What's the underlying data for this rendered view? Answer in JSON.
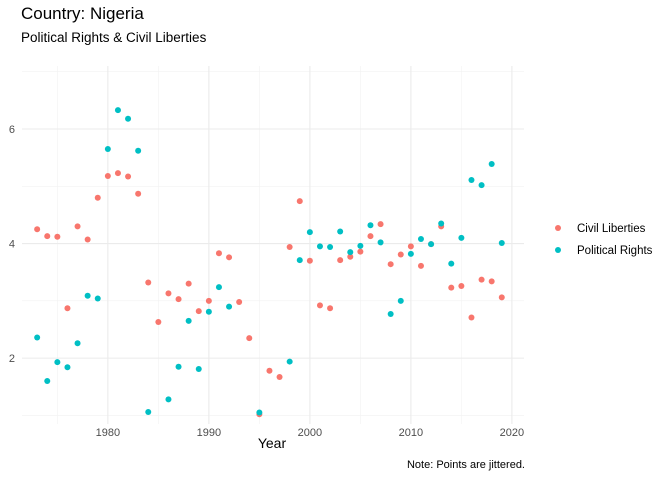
{
  "chart_data": {
    "type": "scatter",
    "title": "Country: Nigeria",
    "subtitle": "Political Rights & Civil Liberties",
    "xlabel": "Year",
    "ylabel": "",
    "caption": "Note: Points are jittered.",
    "xlim": [
      1971.5,
      2021.2
    ],
    "ylim": [
      0.85,
      7.1
    ],
    "x_ticks": [
      1980,
      1990,
      2000,
      2010,
      2020
    ],
    "y_ticks": [
      2,
      4,
      6
    ],
    "grid": true,
    "legend_position": "right",
    "series": [
      {
        "name": "Civil Liberties",
        "color": "#F8766D",
        "points": [
          [
            1973,
            4.25
          ],
          [
            1974,
            4.13
          ],
          [
            1975,
            4.12
          ],
          [
            1976,
            2.87
          ],
          [
            1977,
            4.3
          ],
          [
            1978,
            4.07
          ],
          [
            1979,
            4.8
          ],
          [
            1980,
            5.18
          ],
          [
            1981,
            5.23
          ],
          [
            1982,
            5.17
          ],
          [
            1983,
            4.87
          ],
          [
            1984,
            3.32
          ],
          [
            1985,
            2.63
          ],
          [
            1986,
            3.13
          ],
          [
            1987,
            3.03
          ],
          [
            1988,
            3.3
          ],
          [
            1989,
            2.82
          ],
          [
            1990,
            3.0
          ],
          [
            1991,
            3.83
          ],
          [
            1992,
            3.76
          ],
          [
            1993,
            2.98
          ],
          [
            1994,
            2.35
          ],
          [
            1995,
            1.02
          ],
          [
            1996,
            1.78
          ],
          [
            1997,
            1.67
          ],
          [
            1998,
            3.94
          ],
          [
            1999,
            4.74
          ],
          [
            2000,
            3.7
          ],
          [
            2001,
            2.92
          ],
          [
            2002,
            2.87
          ],
          [
            2003,
            3.71
          ],
          [
            2004,
            3.77
          ],
          [
            2005,
            3.86
          ],
          [
            2006,
            4.13
          ],
          [
            2007,
            4.34
          ],
          [
            2008,
            3.64
          ],
          [
            2009,
            3.81
          ],
          [
            2010,
            3.95
          ],
          [
            2011,
            3.61
          ],
          [
            2012,
            3.99
          ],
          [
            2013,
            4.3
          ],
          [
            2014,
            3.23
          ],
          [
            2015,
            3.26
          ],
          [
            2016,
            2.71
          ],
          [
            2017,
            3.37
          ],
          [
            2018,
            3.34
          ],
          [
            2019,
            3.06
          ]
        ]
      },
      {
        "name": "Political Rights",
        "color": "#00BFC4",
        "points": [
          [
            1973,
            2.36
          ],
          [
            1974,
            1.6
          ],
          [
            1975,
            1.93
          ],
          [
            1976,
            1.84
          ],
          [
            1977,
            2.26
          ],
          [
            1978,
            3.09
          ],
          [
            1979,
            3.04
          ],
          [
            1980,
            5.65
          ],
          [
            1981,
            6.33
          ],
          [
            1982,
            6.18
          ],
          [
            1983,
            5.62
          ],
          [
            1984,
            1.06
          ],
          [
            1986,
            1.28
          ],
          [
            1987,
            1.85
          ],
          [
            1988,
            2.65
          ],
          [
            1989,
            1.81
          ],
          [
            1990,
            2.81
          ],
          [
            1991,
            3.24
          ],
          [
            1992,
            2.9
          ],
          [
            1995,
            1.05
          ],
          [
            1998,
            1.94
          ],
          [
            1999,
            3.71
          ],
          [
            2000,
            4.2
          ],
          [
            2001,
            3.95
          ],
          [
            2002,
            3.94
          ],
          [
            2003,
            4.21
          ],
          [
            2004,
            3.85
          ],
          [
            2005,
            3.96
          ],
          [
            2006,
            4.32
          ],
          [
            2007,
            4.02
          ],
          [
            2008,
            2.77
          ],
          [
            2009,
            3.0
          ],
          [
            2010,
            3.82
          ],
          [
            2011,
            4.08
          ],
          [
            2012,
            3.99
          ],
          [
            2013,
            4.35
          ],
          [
            2014,
            3.65
          ],
          [
            2015,
            4.1
          ],
          [
            2016,
            5.11
          ],
          [
            2017,
            5.02
          ],
          [
            2018,
            5.39
          ],
          [
            2019,
            4.01
          ]
        ]
      }
    ]
  }
}
